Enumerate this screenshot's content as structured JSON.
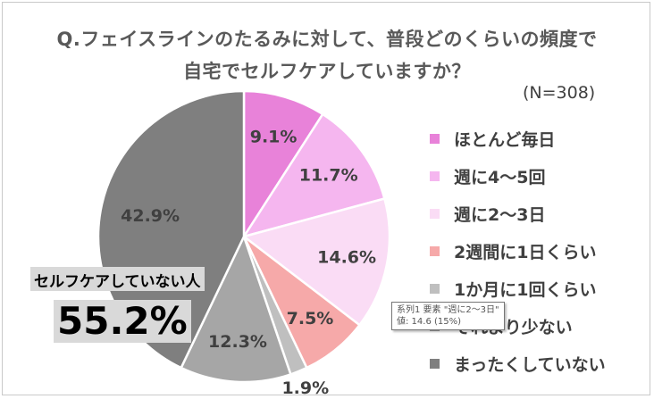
{
  "chart_data": {
    "type": "pie",
    "title_line1": "Q.フェイスラインのたるみに対して、普段どのくらいの頻度で",
    "title_line2": "自宅でセルフケアしていますか？",
    "sample_label": "(N=308)",
    "categories": [
      "ほとんど毎日",
      "週に4～5回",
      "週に2～3日",
      "2週間に1日くらい",
      "1か月に1回くらい",
      "それより少ない",
      "まったくしていない"
    ],
    "values": [
      9.1,
      11.7,
      14.6,
      7.5,
      1.9,
      12.3,
      42.9
    ],
    "data_labels": [
      "9.1%",
      "11.7%",
      "14.6%",
      "7.5%",
      "1.9%",
      "12.3%",
      "42.9%"
    ],
    "colors": [
      "#e882d9",
      "#f5b6ef",
      "#fadcf5",
      "#f6a9a9",
      "#bfbfbf",
      "#a6a6a6",
      "#7f7f7f"
    ],
    "legend_position": "right",
    "callout": {
      "label": "セルフケアしていない人",
      "value": "55.2%"
    },
    "tooltip": {
      "line1": "系列1 要素 \"週に2～3日\"",
      "line2": "値: 14.6 (15%)"
    }
  }
}
